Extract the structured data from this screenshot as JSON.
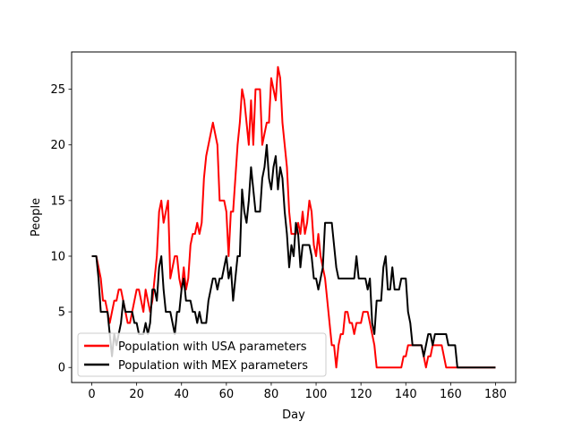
{
  "chart_data": {
    "type": "line",
    "xlabel": "Day",
    "ylabel": "People",
    "xlim": [
      -9,
      189
    ],
    "ylim": [
      -1.35,
      28.35
    ],
    "xticks": [
      0,
      20,
      40,
      60,
      80,
      100,
      120,
      140,
      160,
      180
    ],
    "yticks": [
      0,
      5,
      10,
      15,
      20,
      25
    ],
    "grid": false,
    "legend_position": "lower-left",
    "series": [
      {
        "name": "Population with USA parameters",
        "color": "#ff0000",
        "points": [
          [
            0,
            10
          ],
          [
            2,
            10
          ],
          [
            3,
            9
          ],
          [
            4,
            8
          ],
          [
            5,
            6
          ],
          [
            6,
            6
          ],
          [
            7,
            5
          ],
          [
            8,
            4
          ],
          [
            9,
            5
          ],
          [
            10,
            6
          ],
          [
            11,
            6
          ],
          [
            12,
            7
          ],
          [
            13,
            7
          ],
          [
            14,
            6
          ],
          [
            15,
            5
          ],
          [
            16,
            4
          ],
          [
            17,
            4
          ],
          [
            18,
            5
          ],
          [
            19,
            6
          ],
          [
            20,
            7
          ],
          [
            21,
            7
          ],
          [
            22,
            6
          ],
          [
            23,
            5
          ],
          [
            24,
            7
          ],
          [
            25,
            6
          ],
          [
            26,
            5
          ],
          [
            27,
            6
          ],
          [
            28,
            8
          ],
          [
            29,
            10
          ],
          [
            30,
            14
          ],
          [
            31,
            15
          ],
          [
            32,
            13
          ],
          [
            33,
            14
          ],
          [
            34,
            15
          ],
          [
            35,
            8
          ],
          [
            36,
            9
          ],
          [
            37,
            10
          ],
          [
            38,
            10
          ],
          [
            39,
            8
          ],
          [
            40,
            7
          ],
          [
            41,
            9
          ],
          [
            42,
            7
          ],
          [
            43,
            8
          ],
          [
            44,
            11
          ],
          [
            45,
            12
          ],
          [
            46,
            12
          ],
          [
            47,
            13
          ],
          [
            48,
            12
          ],
          [
            49,
            13
          ],
          [
            50,
            17
          ],
          [
            51,
            19
          ],
          [
            52,
            20
          ],
          [
            53,
            21
          ],
          [
            54,
            22
          ],
          [
            55,
            21
          ],
          [
            56,
            20
          ],
          [
            57,
            15
          ],
          [
            58,
            15
          ],
          [
            59,
            15
          ],
          [
            60,
            14
          ],
          [
            61,
            10
          ],
          [
            62,
            14
          ],
          [
            63,
            14
          ],
          [
            64,
            17
          ],
          [
            65,
            20
          ],
          [
            66,
            22
          ],
          [
            67,
            25
          ],
          [
            68,
            24
          ],
          [
            69,
            22
          ],
          [
            70,
            20
          ],
          [
            71,
            24
          ],
          [
            72,
            20
          ],
          [
            73,
            25
          ],
          [
            74,
            25
          ],
          [
            75,
            25
          ],
          [
            76,
            20
          ],
          [
            77,
            21
          ],
          [
            78,
            22
          ],
          [
            79,
            22
          ],
          [
            80,
            26
          ],
          [
            81,
            25
          ],
          [
            82,
            24
          ],
          [
            83,
            27
          ],
          [
            84,
            26
          ],
          [
            85,
            22
          ],
          [
            86,
            20
          ],
          [
            87,
            18
          ],
          [
            88,
            14
          ],
          [
            89,
            12
          ],
          [
            90,
            12
          ],
          [
            91,
            12
          ],
          [
            92,
            13
          ],
          [
            93,
            12
          ],
          [
            94,
            14
          ],
          [
            95,
            12
          ],
          [
            96,
            13
          ],
          [
            97,
            15
          ],
          [
            98,
            14
          ],
          [
            99,
            11
          ],
          [
            100,
            10
          ],
          [
            101,
            12
          ],
          [
            102,
            10
          ],
          [
            103,
            9
          ],
          [
            104,
            8
          ],
          [
            105,
            6
          ],
          [
            106,
            4
          ],
          [
            107,
            2
          ],
          [
            108,
            2
          ],
          [
            109,
            0
          ],
          [
            110,
            2
          ],
          [
            111,
            3
          ],
          [
            112,
            3
          ],
          [
            113,
            5
          ],
          [
            114,
            5
          ],
          [
            115,
            4
          ],
          [
            116,
            4
          ],
          [
            117,
            3
          ],
          [
            118,
            4
          ],
          [
            119,
            4
          ],
          [
            120,
            4
          ],
          [
            121,
            5
          ],
          [
            122,
            5
          ],
          [
            123,
            5
          ],
          [
            124,
            4
          ],
          [
            125,
            3
          ],
          [
            126,
            2
          ],
          [
            127,
            0
          ],
          [
            138,
            0
          ],
          [
            139,
            1
          ],
          [
            140,
            1
          ],
          [
            141,
            2
          ],
          [
            142,
            2
          ],
          [
            147,
            2
          ],
          [
            148,
            1
          ],
          [
            149,
            0
          ],
          [
            150,
            1
          ],
          [
            151,
            1
          ],
          [
            152,
            2
          ],
          [
            156,
            2
          ],
          [
            157,
            1
          ],
          [
            158,
            0
          ],
          [
            180,
            0
          ]
        ]
      },
      {
        "name": "Population with MEX parameters",
        "color": "#000000",
        "points": [
          [
            0,
            10
          ],
          [
            2,
            10
          ],
          [
            3,
            8
          ],
          [
            4,
            5
          ],
          [
            7,
            5
          ],
          [
            8,
            3
          ],
          [
            9,
            1
          ],
          [
            10,
            3
          ],
          [
            11,
            2
          ],
          [
            12,
            3
          ],
          [
            13,
            4
          ],
          [
            14,
            6
          ],
          [
            15,
            5
          ],
          [
            16,
            5
          ],
          [
            17,
            5
          ],
          [
            18,
            5
          ],
          [
            19,
            4
          ],
          [
            20,
            4
          ],
          [
            21,
            3
          ],
          [
            22,
            3
          ],
          [
            23,
            3
          ],
          [
            24,
            4
          ],
          [
            25,
            3
          ],
          [
            26,
            4
          ],
          [
            27,
            7
          ],
          [
            28,
            7
          ],
          [
            29,
            6
          ],
          [
            30,
            9
          ],
          [
            31,
            10
          ],
          [
            32,
            7
          ],
          [
            33,
            5
          ],
          [
            34,
            5
          ],
          [
            35,
            5
          ],
          [
            36,
            4
          ],
          [
            37,
            3
          ],
          [
            38,
            5
          ],
          [
            39,
            5
          ],
          [
            40,
            7
          ],
          [
            41,
            8
          ],
          [
            42,
            6
          ],
          [
            43,
            6
          ],
          [
            44,
            6
          ],
          [
            45,
            5
          ],
          [
            46,
            5
          ],
          [
            47,
            4
          ],
          [
            48,
            5
          ],
          [
            49,
            4
          ],
          [
            50,
            4
          ],
          [
            51,
            4
          ],
          [
            52,
            6
          ],
          [
            53,
            7
          ],
          [
            54,
            8
          ],
          [
            55,
            8
          ],
          [
            56,
            7
          ],
          [
            57,
            8
          ],
          [
            58,
            8
          ],
          [
            59,
            9
          ],
          [
            60,
            10
          ],
          [
            61,
            8
          ],
          [
            62,
            9
          ],
          [
            63,
            6
          ],
          [
            64,
            8
          ],
          [
            65,
            10
          ],
          [
            66,
            10
          ],
          [
            67,
            16
          ],
          [
            68,
            14
          ],
          [
            69,
            13
          ],
          [
            70,
            15
          ],
          [
            71,
            18
          ],
          [
            72,
            16
          ],
          [
            73,
            14
          ],
          [
            74,
            14
          ],
          [
            75,
            14
          ],
          [
            76,
            17
          ],
          [
            77,
            18
          ],
          [
            78,
            20
          ],
          [
            79,
            17
          ],
          [
            80,
            16
          ],
          [
            81,
            18
          ],
          [
            82,
            19
          ],
          [
            83,
            16
          ],
          [
            84,
            18
          ],
          [
            85,
            17
          ],
          [
            86,
            14
          ],
          [
            87,
            12
          ],
          [
            88,
            9
          ],
          [
            89,
            11
          ],
          [
            90,
            10
          ],
          [
            91,
            13
          ],
          [
            92,
            12
          ],
          [
            93,
            9
          ],
          [
            94,
            11
          ],
          [
            95,
            11
          ],
          [
            96,
            11
          ],
          [
            97,
            11
          ],
          [
            98,
            10
          ],
          [
            99,
            8
          ],
          [
            100,
            8
          ],
          [
            101,
            7
          ],
          [
            102,
            8
          ],
          [
            103,
            9
          ],
          [
            104,
            13
          ],
          [
            107,
            13
          ],
          [
            108,
            11
          ],
          [
            109,
            9
          ],
          [
            110,
            8
          ],
          [
            117,
            8
          ],
          [
            118,
            10
          ],
          [
            119,
            8
          ],
          [
            122,
            8
          ],
          [
            123,
            7
          ],
          [
            124,
            8
          ],
          [
            125,
            4
          ],
          [
            126,
            3
          ],
          [
            127,
            6
          ],
          [
            129,
            6
          ],
          [
            130,
            9
          ],
          [
            131,
            10
          ],
          [
            132,
            7
          ],
          [
            133,
            7
          ],
          [
            134,
            9
          ],
          [
            135,
            7
          ],
          [
            136,
            7
          ],
          [
            137,
            7
          ],
          [
            138,
            8
          ],
          [
            140,
            8
          ],
          [
            141,
            5
          ],
          [
            142,
            4
          ],
          [
            143,
            2
          ],
          [
            147,
            2
          ],
          [
            148,
            1
          ],
          [
            149,
            2
          ],
          [
            150,
            3
          ],
          [
            151,
            3
          ],
          [
            152,
            2
          ],
          [
            153,
            3
          ],
          [
            158,
            3
          ],
          [
            159,
            2
          ],
          [
            162,
            2
          ],
          [
            163,
            0
          ],
          [
            180,
            0
          ]
        ]
      }
    ]
  }
}
